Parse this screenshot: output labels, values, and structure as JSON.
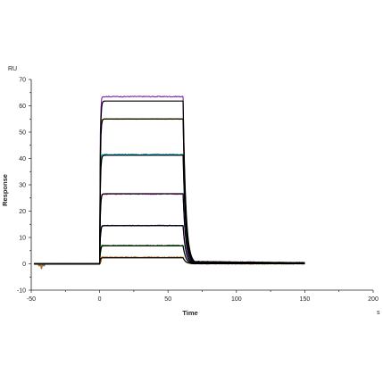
{
  "chart_data": {
    "type": "line",
    "title": "",
    "xlabel": "Time",
    "ylabel": "Response",
    "y_unit": "RU",
    "x_unit": "s",
    "xlim": [
      -50,
      200
    ],
    "ylim": [
      -10,
      70
    ],
    "x_ticks": [
      "-50",
      "0",
      "50",
      "100",
      "150",
      "200"
    ],
    "y_ticks": [
      "-10",
      "0",
      "10",
      "20",
      "30",
      "40",
      "50",
      "60",
      "70"
    ],
    "grid": false,
    "legend": "none",
    "injection_start": 0,
    "injection_end": 61,
    "run_end": 150,
    "series": [
      {
        "plateau": 63.5,
        "color": "#7f1fb0"
      },
      {
        "plateau": 55.0,
        "color": "#c8a000"
      },
      {
        "plateau": 41.5,
        "color": "#0090b0"
      },
      {
        "plateau": 26.5,
        "color": "#c020c0"
      },
      {
        "plateau": 14.5,
        "color": "#1a3ab0"
      },
      {
        "plateau": 7.0,
        "color": "#2a9a2a"
      },
      {
        "plateau": 2.5,
        "color": "#d07020"
      }
    ],
    "fit_plateaus": [
      61.8,
      55.0,
      41.2,
      26.6,
      14.5,
      6.8,
      2.3
    ],
    "fit_color": "#000000"
  }
}
